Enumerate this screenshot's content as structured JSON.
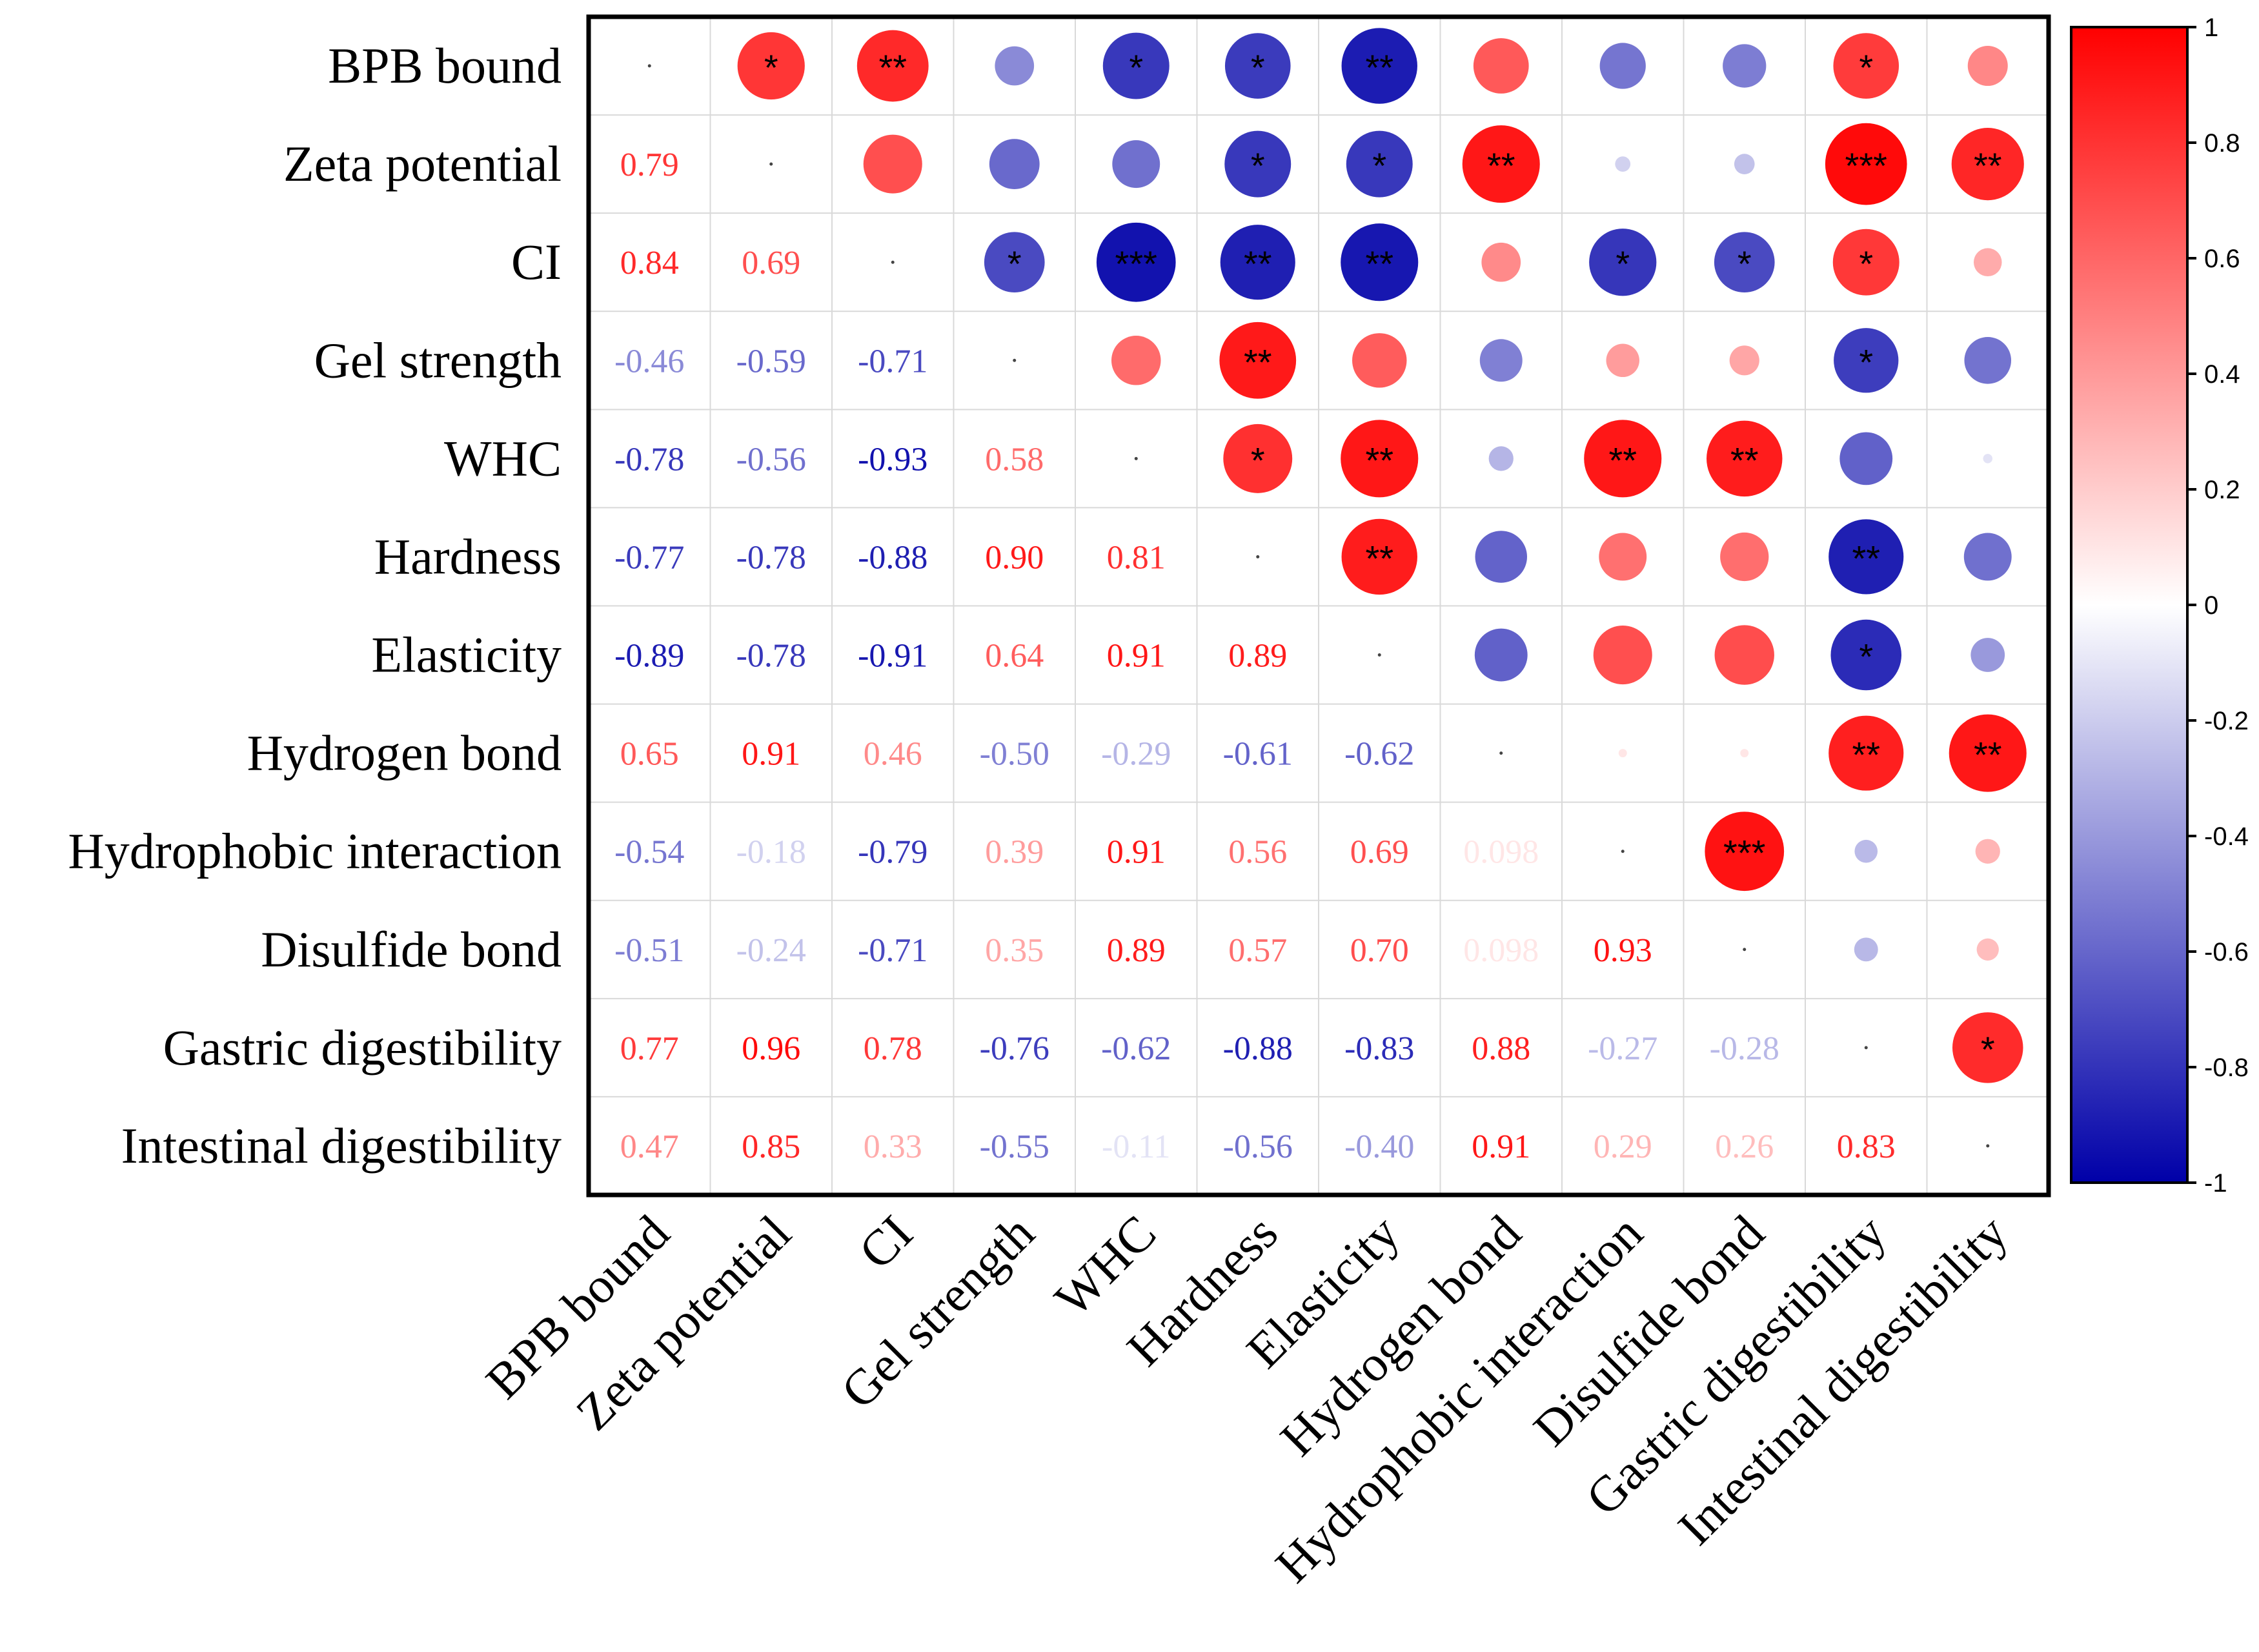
{
  "chart_data": {
    "type": "heatmap",
    "subtype": "correlation-matrix",
    "title": "",
    "variables": [
      "BPB bound",
      "Zeta potential",
      "CI",
      "Gel strength",
      "WHC",
      "Hardness",
      "Elasticity",
      "Hydrogen bond",
      "Hydrophobic interaction",
      "Disulfide bond",
      "Gastric digestibility",
      "Intestinal digestibility"
    ],
    "matrix": [
      [
        1,
        0.79,
        0.84,
        -0.46,
        -0.78,
        -0.77,
        -0.89,
        0.65,
        -0.54,
        -0.51,
        0.77,
        0.47
      ],
      [
        0.79,
        1,
        0.69,
        -0.59,
        -0.56,
        -0.78,
        -0.78,
        0.91,
        -0.18,
        -0.24,
        0.96,
        0.85
      ],
      [
        0.84,
        0.69,
        1,
        -0.71,
        -0.93,
        -0.88,
        -0.91,
        0.46,
        -0.79,
        -0.71,
        0.78,
        0.33
      ],
      [
        -0.46,
        -0.59,
        -0.71,
        1,
        0.58,
        0.9,
        0.64,
        -0.5,
        0.39,
        0.35,
        -0.76,
        -0.55
      ],
      [
        -0.78,
        -0.56,
        -0.93,
        0.58,
        1,
        0.81,
        0.91,
        -0.29,
        0.91,
        0.89,
        -0.62,
        -0.11
      ],
      [
        -0.77,
        -0.78,
        -0.88,
        0.9,
        0.81,
        1,
        0.89,
        -0.61,
        0.56,
        0.57,
        -0.88,
        -0.56
      ],
      [
        -0.89,
        -0.78,
        -0.91,
        0.64,
        0.91,
        0.89,
        1,
        -0.62,
        0.69,
        0.7,
        -0.83,
        -0.4
      ],
      [
        0.65,
        0.91,
        0.46,
        -0.5,
        -0.29,
        -0.61,
        -0.62,
        1,
        0.098,
        0.098,
        0.88,
        0.91
      ],
      [
        -0.54,
        -0.18,
        -0.79,
        0.39,
        0.91,
        0.56,
        0.69,
        0.098,
        1,
        0.93,
        -0.27,
        0.29
      ],
      [
        -0.51,
        -0.24,
        -0.71,
        0.35,
        0.89,
        0.57,
        0.7,
        0.098,
        0.93,
        1,
        -0.28,
        0.26
      ],
      [
        0.77,
        0.96,
        0.78,
        -0.76,
        -0.62,
        -0.88,
        -0.83,
        0.88,
        -0.27,
        -0.28,
        1,
        0.83
      ],
      [
        0.47,
        0.85,
        0.33,
        -0.55,
        -0.11,
        -0.56,
        -0.4,
        0.91,
        0.29,
        0.26,
        0.83,
        1
      ]
    ],
    "lower_triangle_labels": [
      [
        "0.79"
      ],
      [
        "0.84",
        "0.69"
      ],
      [
        "-0.46",
        "-0.59",
        "-0.71"
      ],
      [
        "-0.78",
        "-0.56",
        "-0.93",
        "0.58"
      ],
      [
        "-0.77",
        "-0.78",
        "-0.88",
        "0.90",
        "0.81"
      ],
      [
        "-0.89",
        "-0.78",
        "-0.91",
        "0.64",
        "0.91",
        "0.89"
      ],
      [
        "0.65",
        "0.91",
        "0.46",
        "-0.50",
        "-0.29",
        "-0.61",
        "-0.62"
      ],
      [
        "-0.54",
        "-0.18",
        "-0.79",
        "0.39",
        "0.91",
        "0.56",
        "0.69",
        "0.098"
      ],
      [
        "-0.51",
        "-0.24",
        "-0.71",
        "0.35",
        "0.89",
        "0.57",
        "0.70",
        "0.098",
        "0.93"
      ],
      [
        "0.77",
        "0.96",
        "0.78",
        "-0.76",
        "-0.62",
        "-0.88",
        "-0.83",
        "0.88",
        "-0.27",
        "-0.28"
      ],
      [
        "0.47",
        "0.85",
        "0.33",
        "-0.55",
        "-0.11",
        "-0.56",
        "-0.40",
        "0.91",
        "0.29",
        "0.26",
        "0.83"
      ]
    ],
    "significance": [
      [
        "",
        "*",
        "**",
        "",
        "*",
        "*",
        "**",
        "",
        "",
        "",
        "*",
        ""
      ],
      [
        "*",
        "",
        "",
        "",
        "",
        "*",
        "*",
        "**",
        "",
        "",
        "***",
        "**"
      ],
      [
        "**",
        "",
        "",
        "*",
        "***",
        "**",
        "**",
        "",
        "*",
        "*",
        "*",
        ""
      ],
      [
        "",
        "",
        "*",
        "",
        "",
        "**",
        "",
        "",
        "",
        "",
        "*",
        ""
      ],
      [
        "*",
        "",
        "***",
        "",
        "",
        "*",
        "**",
        "",
        "**",
        "**",
        "",
        ""
      ],
      [
        "*",
        "*",
        "**",
        "**",
        "*",
        "",
        "**",
        "",
        "",
        "",
        "**",
        ""
      ],
      [
        "**",
        "*",
        "**",
        "",
        "**",
        "**",
        "",
        "",
        "",
        "",
        "*",
        ""
      ],
      [
        "",
        "**",
        "",
        "",
        "",
        "",
        "",
        "",
        "",
        "",
        "**",
        "**"
      ],
      [
        "",
        "",
        "*",
        "",
        "**",
        "",
        "",
        "",
        "",
        "***",
        "",
        ""
      ],
      [
        "",
        "",
        "*",
        "",
        "**",
        "",
        "",
        "",
        "***",
        "",
        "",
        ""
      ],
      [
        "*",
        "***",
        "*",
        "*",
        "",
        "**",
        "*",
        "**",
        "",
        "",
        "",
        "*"
      ],
      [
        "",
        "**",
        "",
        "",
        "",
        "",
        "",
        "**",
        "",
        "",
        "*",
        ""
      ]
    ],
    "colorbar": {
      "range": [
        -1,
        1
      ],
      "ticks": [
        "1",
        "0.8",
        "0.6",
        "0.4",
        "0.2",
        "0",
        "-0.2",
        "-0.4",
        "-0.6",
        "-0.8",
        "-1"
      ],
      "colors": {
        "negative": "#0000a8",
        "zero": "#ffffff",
        "positive": "#ff0000"
      }
    },
    "layout_description": "upper triangle shows circles sized and colored by correlation with significance stars; lower triangle shows numeric coefficients; diagonal shows a dot"
  }
}
